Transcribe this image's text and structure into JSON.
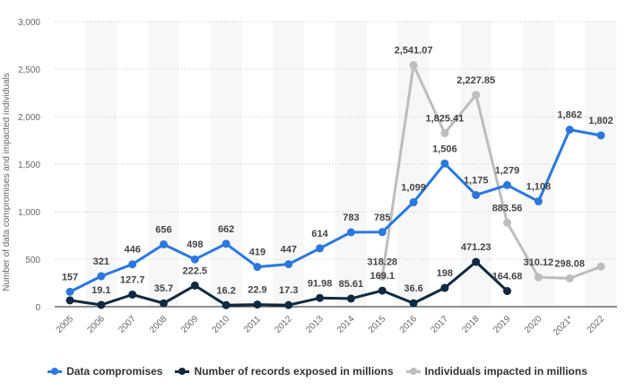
{
  "chart_data": {
    "type": "line",
    "ylabel": "Number of data compromises and impacted individuals",
    "xlabel": "",
    "ylim": [
      0,
      3000
    ],
    "yticks": [
      "0",
      "500",
      "1,000",
      "1,500",
      "2,000",
      "2,500",
      "3,000"
    ],
    "ytick_values": [
      0,
      500,
      1000,
      1500,
      2000,
      2500,
      3000
    ],
    "grid": true,
    "legend_position": "bottom",
    "categories": [
      "2005",
      "2006",
      "2007",
      "2008",
      "2009",
      "2010",
      "2011",
      "2012",
      "2013",
      "2014",
      "2015",
      "2016",
      "2017",
      "2018",
      "2019",
      "2020",
      "2021*",
      "2022"
    ],
    "series": [
      {
        "name": "Data compromises",
        "color": "#2a78de",
        "values": [
          157,
          321,
          446,
          656,
          498,
          662,
          419,
          447,
          614,
          783,
          785,
          1099,
          1506,
          1175,
          1279,
          1108,
          1862,
          1802
        ],
        "labels": [
          "157",
          "321",
          "446",
          "656",
          "498",
          "662",
          "419",
          "447",
          "614",
          "783",
          "785",
          "1,099",
          "1,506",
          "1,175",
          "1,279",
          "1,108",
          "1,862",
          "1,802"
        ]
      },
      {
        "name": "Number of records exposed in millions",
        "color": "#0f2a40",
        "values": [
          66.9,
          19.1,
          127.7,
          35.7,
          222.5,
          16.2,
          22.9,
          17.3,
          91.98,
          85.61,
          169.1,
          36.6,
          198,
          471.23,
          164.68,
          null,
          null,
          null
        ],
        "labels": [
          "",
          "19.1",
          "127.7",
          "35.7",
          "222.5",
          "16.2",
          "22.9",
          "17.3",
          "91.98",
          "85.61",
          "169.1",
          "36.6",
          "198",
          "471.23",
          "164.68",
          "",
          "",
          ""
        ]
      },
      {
        "name": "Individuals impacted in millions",
        "color": "#bdbdbd",
        "values": [
          null,
          null,
          null,
          null,
          null,
          null,
          null,
          null,
          null,
          null,
          318.28,
          2541.07,
          1825.41,
          2227.85,
          883.56,
          310.12,
          298.08,
          422
        ],
        "labels": [
          "",
          "",
          "",
          "",
          "",
          "",
          "",
          "",
          "",
          "",
          "318.28",
          "2,541.07",
          "1,825.41",
          "2,227.85",
          "883.56",
          "310.12",
          "298.08",
          ""
        ]
      }
    ]
  }
}
